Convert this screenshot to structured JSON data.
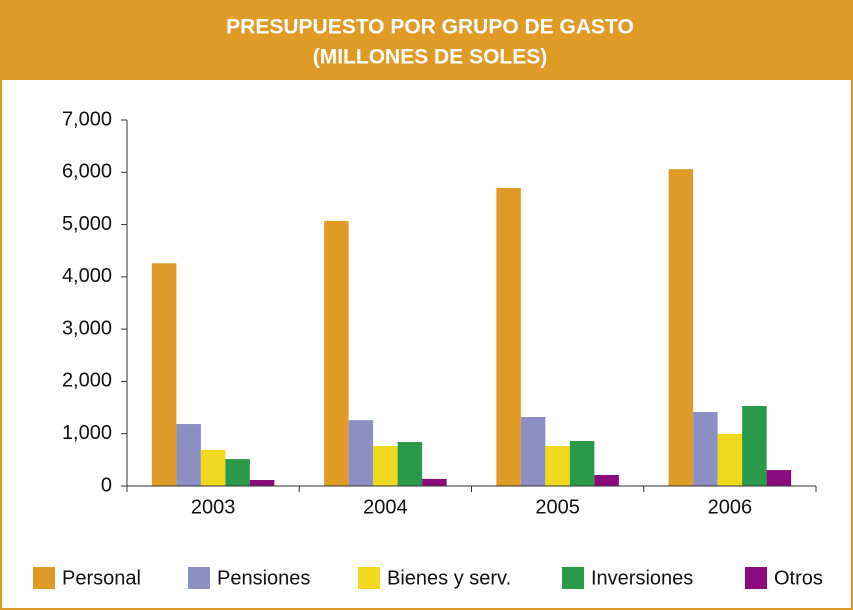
{
  "chart_data": {
    "type": "bar",
    "title": "PRESUPUESTO POR GRUPO DE GASTO",
    "subtitle": "(MILLONES DE SOLES)",
    "categories": [
      "2003",
      "2004",
      "2005",
      "2006"
    ],
    "series": [
      {
        "name": "Personal",
        "color": "#e09b27",
        "values": [
          4260,
          5070,
          5700,
          6060
        ]
      },
      {
        "name": "Pensiones",
        "color": "#8c8fc4",
        "values": [
          1185,
          1260,
          1320,
          1415
        ]
      },
      {
        "name": "Bienes y serv.",
        "color": "#f0d81e",
        "values": [
          690,
          765,
          765,
          995
        ]
      },
      {
        "name": "Inversiones",
        "color": "#2a9a4a",
        "values": [
          515,
          840,
          860,
          1530
        ]
      },
      {
        "name": "Otros",
        "color": "#8b0a7b",
        "values": [
          115,
          135,
          210,
          305
        ]
      }
    ],
    "ylim": [
      0,
      7000
    ],
    "yticks": [
      0,
      {
        "value": 1000,
        "label": "1,000"
      },
      {
        "value": 2000,
        "label": "2,000"
      },
      {
        "value": 3000,
        "label": "3,000"
      },
      {
        "value": 4000,
        "label": "4,000"
      },
      {
        "value": 5000,
        "label": "5,000"
      },
      {
        "value": 6000,
        "label": "6,000"
      },
      {
        "value": 7000,
        "label": "7,000"
      }
    ],
    "grid": false,
    "legend": "bottom"
  }
}
